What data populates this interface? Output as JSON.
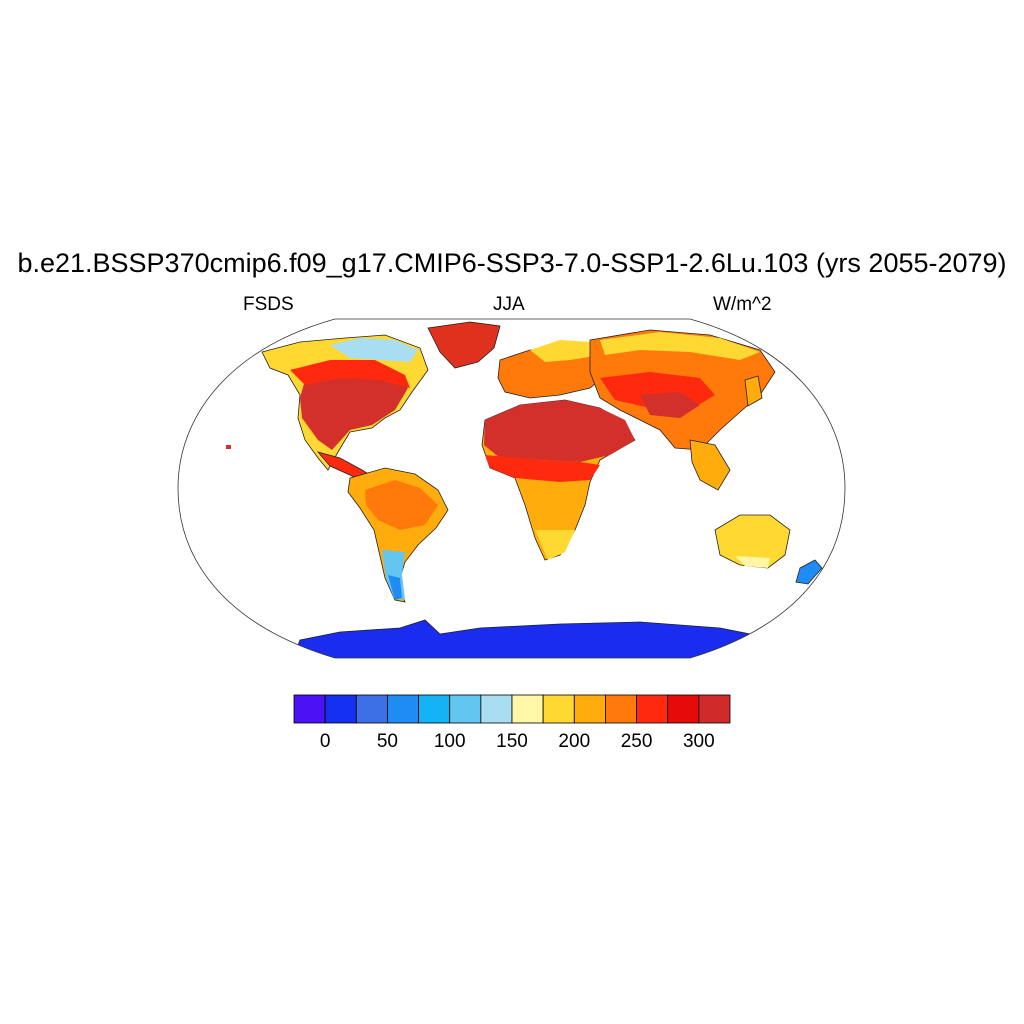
{
  "title": "b.e21.BSSP370cmip6.f09_g17.CMIP6-SSP3-7.0-SSP1-2.6Lu.103 (yrs 2055-2079)",
  "left_string": "FSDS",
  "center_string": "JJA",
  "right_string": "W/m^2",
  "colorbar": {
    "colors": [
      "#4a12f5",
      "#1530f0",
      "#3d6fe6",
      "#1f8cf5",
      "#12b4f5",
      "#62c6f0",
      "#a9ddf2",
      "#fff6a6",
      "#ffd832",
      "#ffac0c",
      "#ff7a0a",
      "#ff2a0d",
      "#e60a0a",
      "#d02a2a"
    ],
    "labels": [
      "0",
      "50",
      "100",
      "150",
      "200",
      "250",
      "300"
    ]
  },
  "map_regions": [
    {
      "name": "antarctica",
      "color": "#1a2cf0"
    },
    {
      "name": "greenland",
      "color": "#e0301e"
    },
    {
      "name": "sahara-arabia",
      "color": "#d3302c"
    },
    {
      "name": "southern-south-america",
      "color": "#62c6f0"
    },
    {
      "name": "amazon",
      "color": "#ff7a0a"
    }
  ]
}
